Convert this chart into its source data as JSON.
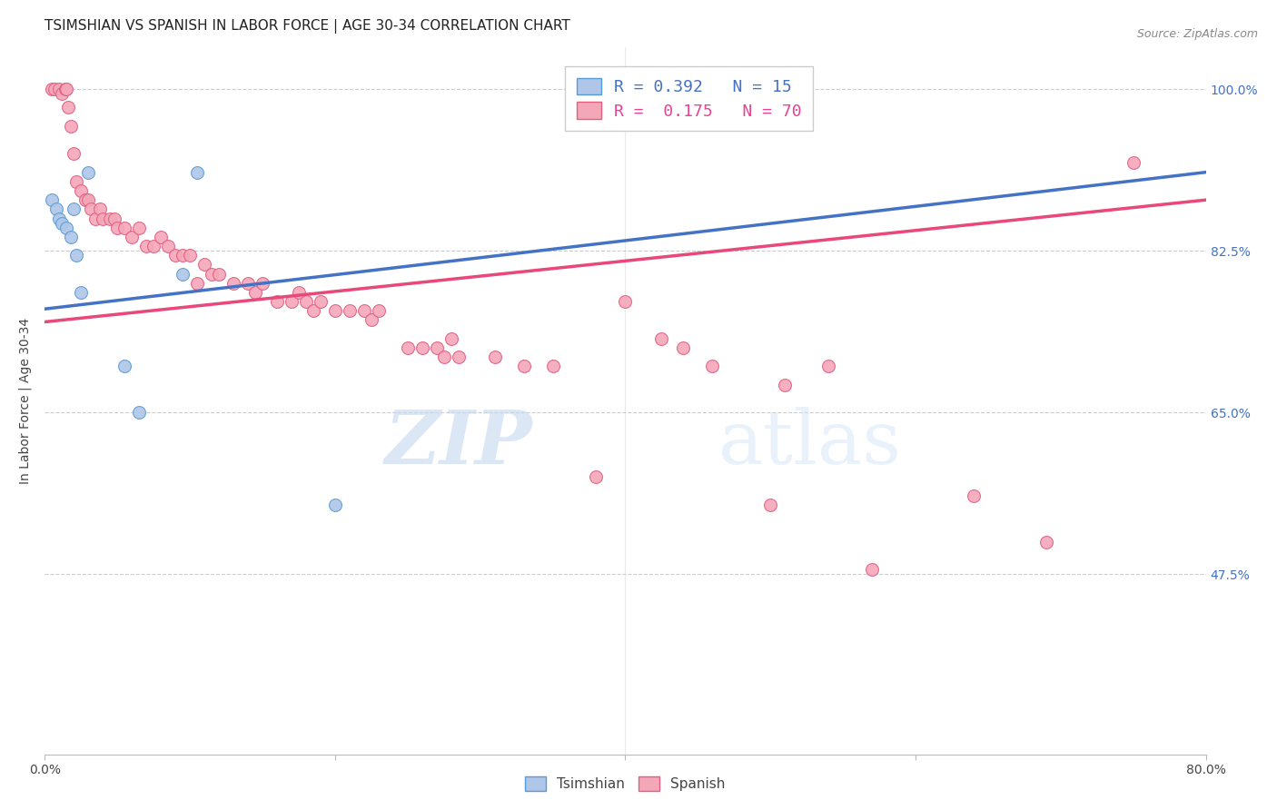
{
  "title": "TSIMSHIAN VS SPANISH IN LABOR FORCE | AGE 30-34 CORRELATION CHART",
  "source_text": "Source: ZipAtlas.com",
  "ylabel": "In Labor Force | Age 30-34",
  "xlim": [
    0.0,
    0.8
  ],
  "ylim": [
    0.28,
    1.045
  ],
  "ytick_positions": [
    0.475,
    0.65,
    0.825,
    1.0
  ],
  "ytick_labels": [
    "47.5%",
    "65.0%",
    "82.5%",
    "100.0%"
  ],
  "ytick_color": "#4472c4",
  "legend_entries": [
    {
      "color": "#a8c4e0",
      "label": "R = 0.392   N = 15",
      "text_color": "#4472c4"
    },
    {
      "color": "#f4a7b9",
      "label": "R =  0.175   N = 70",
      "text_color": "#e84393"
    }
  ],
  "watermark_zip": "ZIP",
  "watermark_atlas": "atlas",
  "tsimshian_x": [
    0.005,
    0.008,
    0.01,
    0.012,
    0.015,
    0.018,
    0.02,
    0.022,
    0.025,
    0.03,
    0.055,
    0.065,
    0.095,
    0.105,
    0.2
  ],
  "tsimshian_y": [
    0.88,
    0.87,
    0.86,
    0.855,
    0.85,
    0.84,
    0.87,
    0.82,
    0.78,
    0.91,
    0.7,
    0.65,
    0.8,
    0.91,
    0.55
  ],
  "spanish_x": [
    0.005,
    0.007,
    0.01,
    0.012,
    0.014,
    0.015,
    0.016,
    0.018,
    0.02,
    0.022,
    0.025,
    0.028,
    0.03,
    0.032,
    0.035,
    0.038,
    0.04,
    0.045,
    0.048,
    0.05,
    0.055,
    0.06,
    0.065,
    0.07,
    0.075,
    0.08,
    0.085,
    0.09,
    0.095,
    0.1,
    0.105,
    0.11,
    0.115,
    0.12,
    0.13,
    0.14,
    0.145,
    0.15,
    0.16,
    0.17,
    0.175,
    0.18,
    0.185,
    0.19,
    0.2,
    0.21,
    0.22,
    0.225,
    0.23,
    0.25,
    0.26,
    0.27,
    0.275,
    0.28,
    0.285,
    0.31,
    0.33,
    0.35,
    0.38,
    0.4,
    0.425,
    0.44,
    0.46,
    0.5,
    0.51,
    0.54,
    0.57,
    0.64,
    0.69,
    0.75
  ],
  "spanish_y": [
    1.0,
    1.0,
    1.0,
    0.995,
    1.0,
    1.0,
    0.98,
    0.96,
    0.93,
    0.9,
    0.89,
    0.88,
    0.88,
    0.87,
    0.86,
    0.87,
    0.86,
    0.86,
    0.86,
    0.85,
    0.85,
    0.84,
    0.85,
    0.83,
    0.83,
    0.84,
    0.83,
    0.82,
    0.82,
    0.82,
    0.79,
    0.81,
    0.8,
    0.8,
    0.79,
    0.79,
    0.78,
    0.79,
    0.77,
    0.77,
    0.78,
    0.77,
    0.76,
    0.77,
    0.76,
    0.76,
    0.76,
    0.75,
    0.76,
    0.72,
    0.72,
    0.72,
    0.71,
    0.73,
    0.71,
    0.71,
    0.7,
    0.7,
    0.58,
    0.77,
    0.73,
    0.72,
    0.7,
    0.55,
    0.68,
    0.7,
    0.48,
    0.56,
    0.51,
    0.92
  ],
  "blue_line_x": [
    0.0,
    0.8
  ],
  "blue_line_y": [
    0.762,
    0.91
  ],
  "pink_line_x": [
    0.0,
    0.8
  ],
  "pink_line_y": [
    0.748,
    0.88
  ],
  "dot_size": 100,
  "blue_dot_color": "#aec6e8",
  "blue_dot_edge": "#5b9bd5",
  "pink_dot_color": "#f4a7b9",
  "pink_dot_edge": "#e06080",
  "blue_line_color": "#4472c4",
  "pink_line_color": "#e8497a",
  "background_color": "#ffffff",
  "grid_color": "#cccccc"
}
